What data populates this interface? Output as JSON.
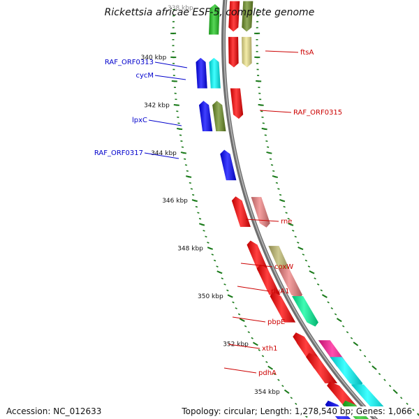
{
  "title": "Rickettsia africae ESF-5, complete genome",
  "footer": {
    "accession": "Accession: NC_012633",
    "summary": "Topology: circular; Length: 1,278,540 bp; Genes: 1,066"
  },
  "ruler": {
    "top_partial_label": "338 kbp",
    "labels": [
      "340 kbp",
      "342 kbp",
      "344 kbp",
      "346 kbp",
      "348 kbp",
      "350 kbp",
      "352 kbp",
      "354 kbp"
    ]
  },
  "colors": {
    "backbone": "#808080",
    "tick": "#1a7a1a",
    "forward_label": "#0000cc",
    "reverse_label": "#cc0000"
  },
  "gene_labels": {
    "forward": [
      "RAF_ORF0313",
      "cycM",
      "lpxC",
      "RAF_ORF0317"
    ],
    "reverse": [
      "ftsA",
      "RAF_ORF0315",
      "rne",
      "coxW",
      "rluA1",
      "pbpE",
      "xth1",
      "pdhA"
    ]
  },
  "features": {
    "forward": [
      {
        "kbp": 338.5,
        "color": "#1ec81e"
      },
      {
        "kbp": 340.75,
        "color": "#00ffff"
      },
      {
        "kbp": 340.75,
        "color": "#0000ff"
      },
      {
        "kbp": 342.55,
        "color": "#6b8e23"
      },
      {
        "kbp": 342.55,
        "color": "#0000ff"
      },
      {
        "kbp": 344.6,
        "color": "#0000ff"
      },
      {
        "kbp": 346.55,
        "color": "#ff0000"
      },
      {
        "kbp": 348.4,
        "color": "#ff0000"
      },
      {
        "kbp": 349.4,
        "color": "#ff0000"
      },
      {
        "kbp": 350.55,
        "color": "#ff0000"
      },
      {
        "kbp": 352.5,
        "color": "#ff0000"
      },
      {
        "kbp": 352.25,
        "color": "#ff0000"
      },
      {
        "kbp": 353.1,
        "color": "#ff0000"
      },
      {
        "kbp": 354.3,
        "color": "#ff0000"
      },
      {
        "kbp": 355.1,
        "color": "#1ec81e"
      },
      {
        "kbp": 355.1,
        "color": "#0000ff"
      }
    ],
    "reverse": [
      {
        "kbp": 338.2,
        "color": "#ff0000"
      },
      {
        "kbp": 338.2,
        "color": "#6b8e23"
      },
      {
        "kbp": 339.7,
        "color": "#ff0000"
      },
      {
        "kbp": 339.7,
        "color": "#f0e68c"
      },
      {
        "kbp": 341.85,
        "color": "#ff0000"
      },
      {
        "kbp": 346.4,
        "color": "#f08080"
      },
      {
        "kbp": 348.45,
        "color": "#bdb76b"
      },
      {
        "kbp": 349.4,
        "color": "#f08080"
      },
      {
        "kbp": 350.55,
        "color": "#00fa9a"
      },
      {
        "kbp": 352.4,
        "color": "#ff1493"
      },
      {
        "kbp": 353.1,
        "color": "#00ffff"
      },
      {
        "kbp": 354.25,
        "color": "#00ffff"
      }
    ]
  }
}
